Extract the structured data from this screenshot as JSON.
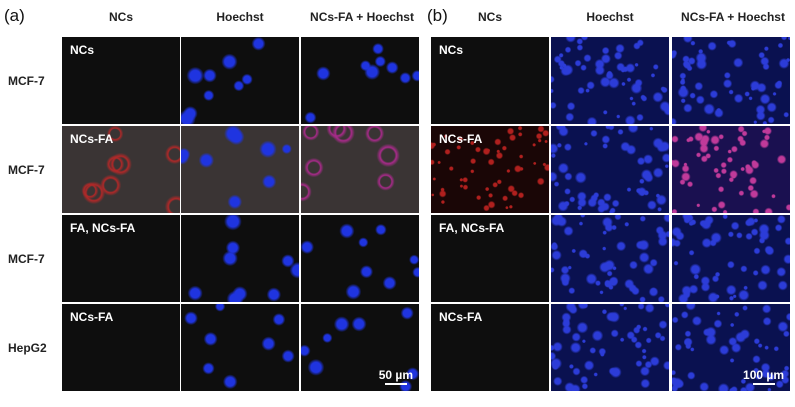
{
  "panels": [
    {
      "label": "(a)",
      "columns": [
        "NCs",
        "Hoechst",
        "NCs-FA + Hoechst"
      ],
      "rows": [
        {
          "label": "MCF-7",
          "tag": "NCs"
        },
        {
          "label": "MCF-7",
          "tag": "NCs-FA"
        },
        {
          "label": "MCF-7",
          "tag": "FA, NCs-FA"
        },
        {
          "label": "HepG2",
          "tag": "NCs-FA"
        }
      ],
      "scale_bar": "50 µm"
    },
    {
      "label": "(b)",
      "columns": [
        "NCs",
        "Hoechst",
        "NCs-FA + Hoechst"
      ],
      "rows": [
        {
          "tag": "NCs"
        },
        {
          "tag": "NCs-FA"
        },
        {
          "tag": "FA, NCs-FA"
        },
        {
          "tag": "NCs-FA"
        }
      ],
      "scale_bar": "100 µm"
    }
  ],
  "colors": {
    "hoechst": "#2a3cff",
    "nc_red": "#d02a2a",
    "merge": "#c03aa0",
    "background": "#0e0e0e"
  }
}
